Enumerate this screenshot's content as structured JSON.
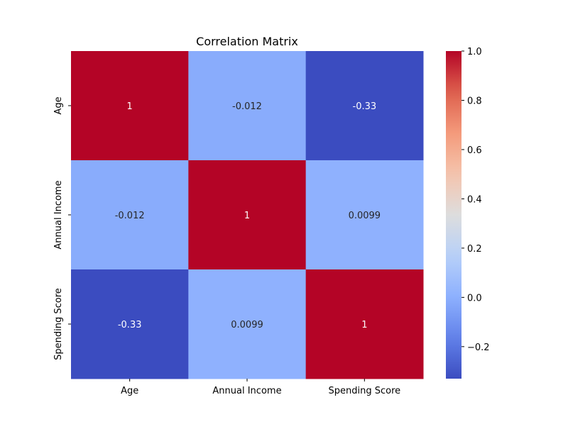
{
  "chart_data": {
    "type": "heatmap",
    "title": "Correlation Matrix",
    "rows": [
      "Age",
      "Annual Income",
      "Spending Score"
    ],
    "columns": [
      "Age",
      "Annual Income",
      "Spending Score"
    ],
    "values": [
      [
        1,
        -0.012,
        -0.33
      ],
      [
        -0.012,
        1,
        0.0099
      ],
      [
        -0.33,
        0.0099,
        1
      ]
    ],
    "cell_labels": [
      [
        "1",
        "-0.012",
        "-0.33"
      ],
      [
        "-0.012",
        "1",
        "0.0099"
      ],
      [
        "-0.33",
        "0.0099",
        "1"
      ]
    ],
    "colormap": "coolwarm",
    "colorbar": {
      "range": [
        -0.33,
        1.0
      ],
      "ticks": [
        -0.2,
        0.0,
        0.2,
        0.4,
        0.6,
        0.8,
        1.0
      ],
      "tick_labels": [
        "−0.2",
        "0.0",
        "0.2",
        "0.4",
        "0.6",
        "0.8",
        "1.0"
      ]
    },
    "grid": false,
    "legend": "colorbar-right"
  }
}
